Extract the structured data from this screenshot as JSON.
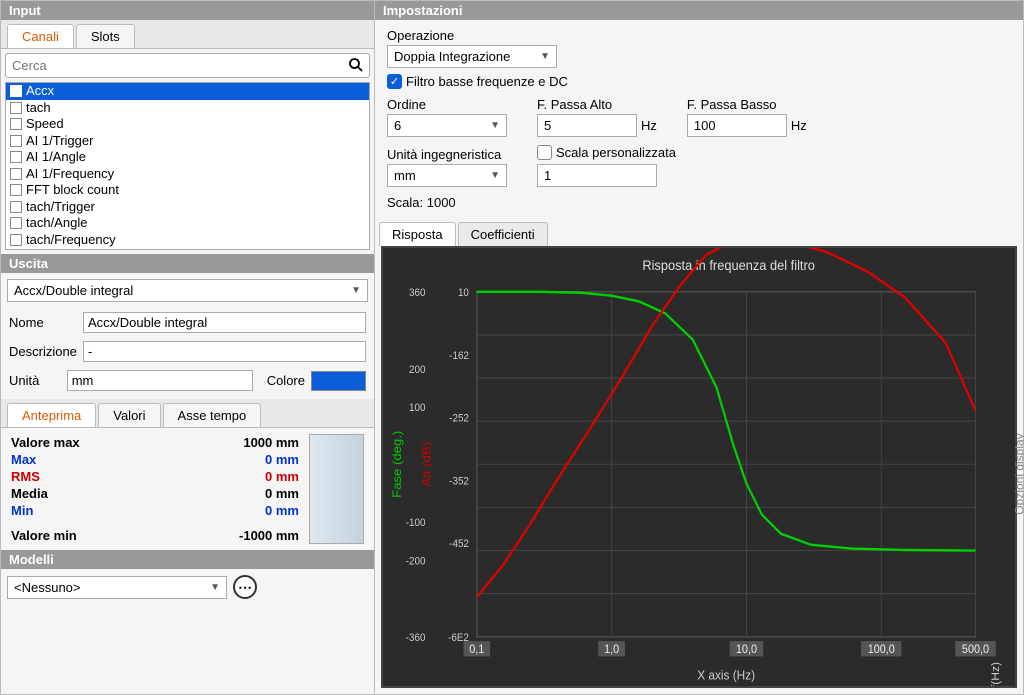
{
  "headers": {
    "input": "Input",
    "settings": "Impostazioni",
    "uscita": "Uscita",
    "modelli": "Modelli"
  },
  "input_tabs": {
    "canali": "Canali",
    "slots": "Slots"
  },
  "search": {
    "placeholder": "Cerca"
  },
  "channels": [
    {
      "label": "Accx",
      "checked": true,
      "selected": true
    },
    {
      "label": "tach",
      "checked": false
    },
    {
      "label": "Speed",
      "checked": false
    },
    {
      "label": "AI 1/Trigger",
      "checked": false
    },
    {
      "label": "AI 1/Angle",
      "checked": false
    },
    {
      "label": "AI 1/Frequency",
      "checked": false
    },
    {
      "label": "FFT block count",
      "checked": false
    },
    {
      "label": "tach/Trigger",
      "checked": false
    },
    {
      "label": "tach/Angle",
      "checked": false
    },
    {
      "label": "tach/Frequency",
      "checked": false
    }
  ],
  "uscita": {
    "select_value": "Accx/Double integral",
    "nome_label": "Nome",
    "nome_value": "Accx/Double integral",
    "descrizione_label": "Descrizione",
    "descrizione_value": "-",
    "unita_label": "Unità",
    "unita_value": "mm",
    "colore_label": "Colore",
    "colore_value": "#0a5fd8"
  },
  "preview_tabs": {
    "anteprima": "Anteprima",
    "valori": "Valori",
    "asse_tempo": "Asse tempo"
  },
  "preview": {
    "rows": [
      {
        "label": "Valore max",
        "value": "1000 mm",
        "color": "#000000"
      },
      {
        "label": "Max",
        "value": "0 mm",
        "color": "#0033cc",
        "strike_ghost": true
      },
      {
        "label": "RMS",
        "value": "0 mm",
        "color": "#cc0000"
      },
      {
        "label": "Media",
        "value": "0 mm",
        "color": "#000000"
      },
      {
        "label": "Min",
        "value": "0 mm",
        "color": "#0033cc"
      },
      {
        "label": "Valore min",
        "value": "-1000 mm",
        "color": "#000000",
        "spacer_before": true
      }
    ]
  },
  "modelli": {
    "value": "<Nessuno>"
  },
  "settings": {
    "operazione_label": "Operazione",
    "operazione_value": "Doppia Integrazione",
    "filtro_check_label": "Filtro basse frequenze e DC",
    "filtro_checked": true,
    "ordine_label": "Ordine",
    "ordine_value": "6",
    "passa_alto_label": "F. Passa Alto",
    "passa_alto_value": "5",
    "passa_alto_unit": "Hz",
    "passa_basso_label": "F. Passa Basso",
    "passa_basso_value": "100",
    "passa_basso_unit": "Hz",
    "unita_ing_label": "Unità ingegneristica",
    "unita_ing_value": "mm",
    "scala_pers_label": "Scala personalizzata",
    "scala_pers_checked": false,
    "scala_pers_value": "1",
    "scala_label": "Scala: 1000"
  },
  "chart_tabs": {
    "risposta": "Risposta",
    "coefficienti": "Coefficienti"
  },
  "chart": {
    "title": "Risposta in frequenza del filtro",
    "bg": "#2b2b2b",
    "grid_color": "#444444",
    "plot_bg": "#2b2b2b",
    "x_label": "X axis (Hz)",
    "x_ticks": [
      "0,1",
      "1,0",
      "10,0",
      "100,0",
      "500,0"
    ],
    "left_axis": {
      "label": "Fase (deg.)",
      "color": "#00cc00",
      "ticks": [
        "360",
        "",
        "200",
        "100",
        "",
        "",
        "-100",
        "-200",
        "",
        "-360"
      ]
    },
    "left_axis2": {
      "label": "Att (dB)",
      "color": "#cc0000",
      "ticks": [
        "10",
        "",
        "-162",
        "",
        "-252",
        "",
        "-352",
        "",
        "-452",
        "",
        "",
        "-6E2"
      ]
    },
    "f_label": "f(Hz)",
    "side_panel_label": "Opzioni display",
    "series": {
      "green": {
        "color": "#00d000",
        "width": 2,
        "points": [
          [
            0.1,
            360
          ],
          [
            0.3,
            360
          ],
          [
            0.6,
            358
          ],
          [
            1.0,
            352
          ],
          [
            1.6,
            340
          ],
          [
            2.5,
            315
          ],
          [
            4.0,
            260
          ],
          [
            6.0,
            160
          ],
          [
            8.0,
            40
          ],
          [
            10.0,
            -40
          ],
          [
            13.0,
            -105
          ],
          [
            18.0,
            -145
          ],
          [
            30.0,
            -168
          ],
          [
            60.0,
            -176
          ],
          [
            150.0,
            -179
          ],
          [
            500.0,
            -180
          ]
        ]
      },
      "red": {
        "color": "#e00000",
        "width": 2,
        "points": [
          [
            0.1,
            -530
          ],
          [
            0.16,
            -470
          ],
          [
            0.25,
            -400
          ],
          [
            0.4,
            -320
          ],
          [
            0.7,
            -230
          ],
          [
            1.2,
            -140
          ],
          [
            2.0,
            -50
          ],
          [
            3.2,
            20
          ],
          [
            5.0,
            75
          ],
          [
            8.0,
            100
          ],
          [
            12.0,
            105
          ],
          [
            20.0,
            100
          ],
          [
            40.0,
            80
          ],
          [
            80.0,
            45
          ],
          [
            150.0,
            0
          ],
          [
            300.0,
            -80
          ],
          [
            500.0,
            -200
          ]
        ]
      }
    },
    "x_domain_log": [
      0.1,
      500
    ],
    "y_domain_fase": [
      -360,
      360
    ],
    "y_domain_att": [
      -600,
      10
    ]
  }
}
